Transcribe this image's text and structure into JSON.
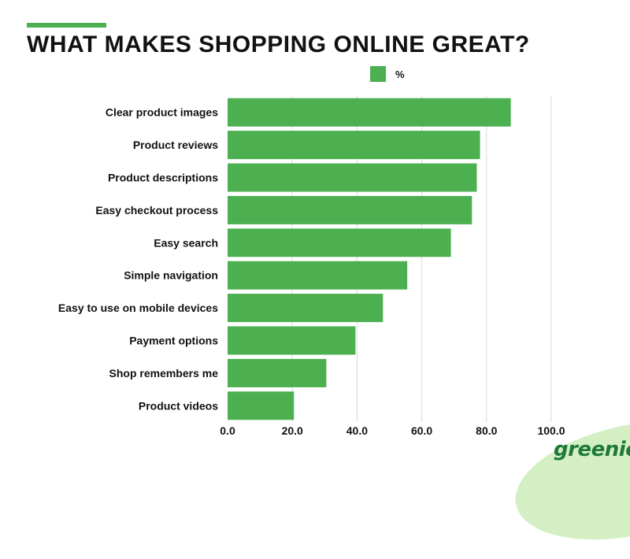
{
  "title": "WHAT MAKES SHOPPING ONLINE GREAT?",
  "brand": "greenice",
  "colors": {
    "accent": "#4caf50",
    "bar": "#4caf50",
    "grid": "#d9d9d9",
    "brand_bg": "#d4efc4",
    "brand_text": "#1e7a36"
  },
  "chart_data": {
    "type": "bar",
    "orientation": "horizontal",
    "categories": [
      "Clear product images",
      "Product reviews",
      "Product descriptions",
      "Easy checkout process",
      "Easy search",
      "Simple navigation",
      "Easy to use on mobile devices",
      "Payment options",
      "Shop remembers me",
      "Product videos"
    ],
    "series": [
      {
        "name": "%",
        "values": [
          87.5,
          78,
          77,
          75.5,
          69,
          55.5,
          48,
          39.5,
          30.5,
          20.5
        ]
      }
    ],
    "xlim": [
      0,
      100
    ],
    "xticks": [
      "0.0",
      "20.0",
      "40.0",
      "60.0",
      "80.0",
      "100.0"
    ],
    "grid": "vertical",
    "legend_position": "top"
  }
}
